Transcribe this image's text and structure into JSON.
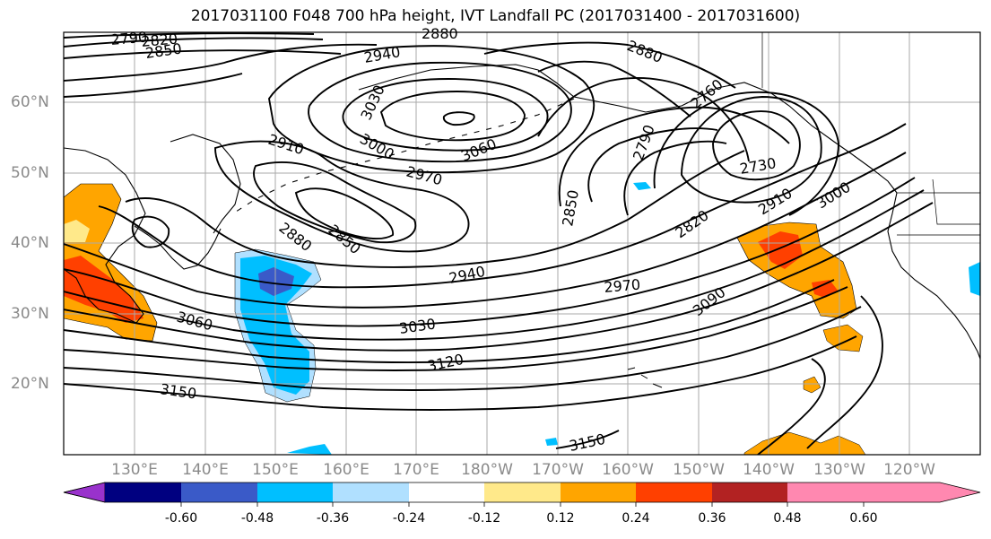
{
  "title": "2017031100 F048 700 hPa height, IVT Landfall PC (2017031400 - 2017031600)",
  "lon_labels": [
    "130°E",
    "140°E",
    "150°E",
    "160°E",
    "170°E",
    "180°W",
    "170°W",
    "160°W",
    "150°W",
    "140°W",
    "130°W",
    "120°W"
  ],
  "lat_labels": [
    "60°N",
    "50°N",
    "40°N",
    "30°N",
    "20°N"
  ],
  "contour_labels": [
    "2790",
    "2820",
    "2850",
    "2880",
    "2940",
    "2880",
    "3030",
    "3000",
    "2910",
    "3060",
    "2970",
    "2850",
    "2880",
    "2850",
    "2940",
    "2970",
    "3060",
    "3030",
    "3120",
    "3150",
    "2790",
    "2760",
    "2730",
    "2850",
    "2820",
    "2910",
    "3000",
    "3090",
    "3150"
  ],
  "colorbar": {
    "colors": [
      "#9932cc",
      "#000080",
      "#3a5ac8",
      "#00bfff",
      "#b0e0ff",
      "#ffffff",
      "#ffe98a",
      "#ffa500",
      "#ff4000",
      "#b22222",
      "#ff88b0"
    ],
    "tick_labels": [
      "-0.60",
      "-0.48",
      "-0.36",
      "-0.24",
      "-0.12",
      "0.12",
      "0.24",
      "0.36",
      "0.48",
      "0.60"
    ]
  }
}
